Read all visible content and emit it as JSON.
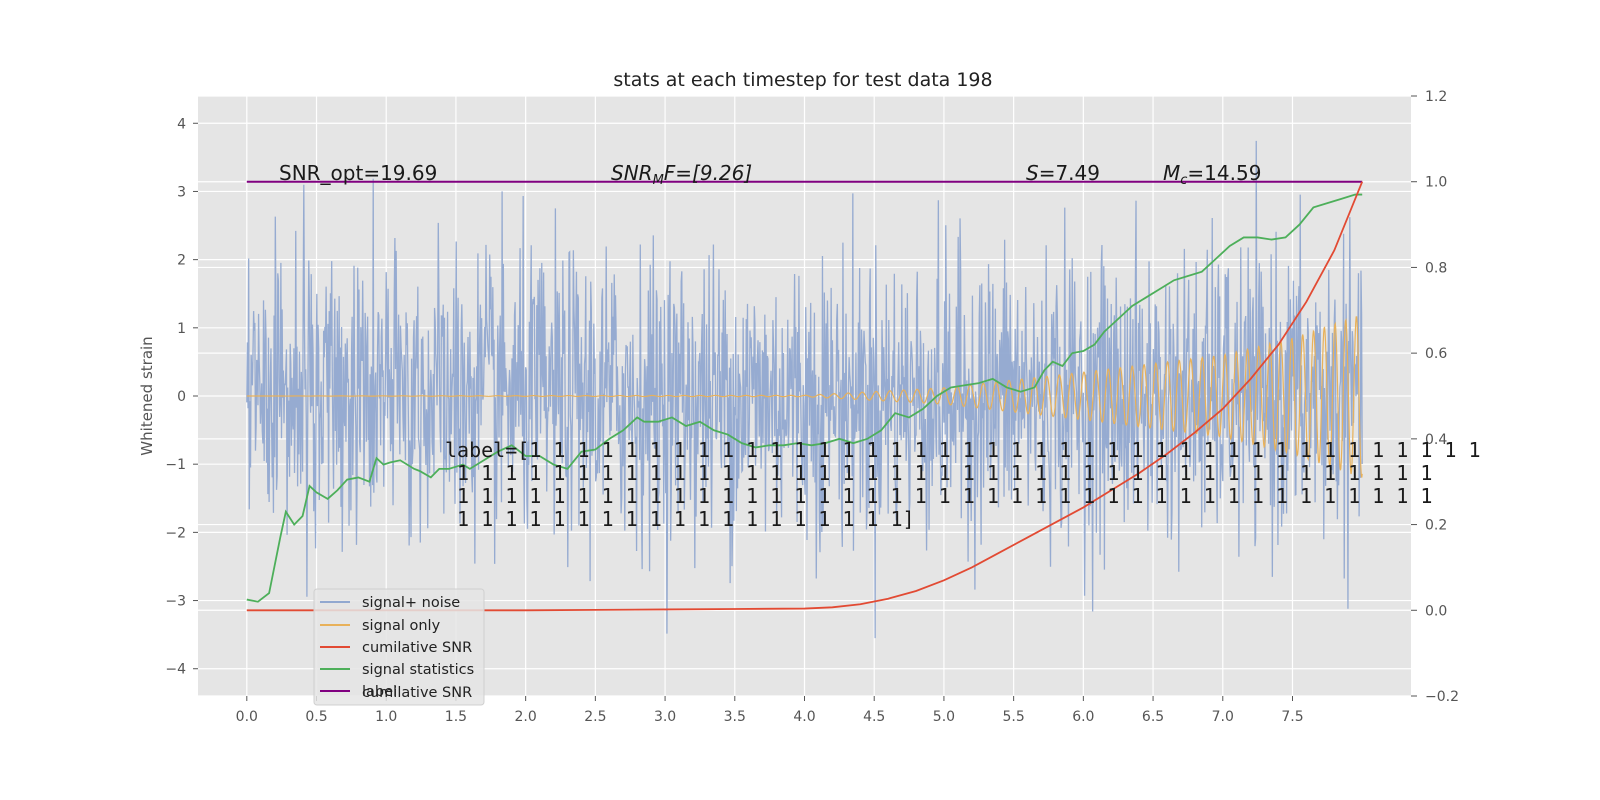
{
  "chart_data": {
    "type": "line",
    "title": "stats at each timestep for test data 198",
    "ylabel": "Whitened strain",
    "xlim": [
      -0.35,
      8.35
    ],
    "ylim_left": [
      -4.4,
      4.4
    ],
    "ylim_right": [
      -0.2,
      1.2
    ],
    "x_ticks": [
      "0.0",
      "0.5",
      "1.0",
      "1.5",
      "2.0",
      "2.5",
      "3.0",
      "3.5",
      "4.0",
      "4.5",
      "5.0",
      "5.5",
      "6.0",
      "6.5",
      "7.0",
      "7.5"
    ],
    "y_left_ticks": [
      "4",
      "3",
      "2",
      "1",
      "0",
      "−1",
      "−2",
      "−3",
      "−4"
    ],
    "y_right_ticks": [
      "1.2",
      "1.0",
      "0.8",
      "0.6",
      "0.4",
      "0.2",
      "0.0",
      "−0.2"
    ],
    "grid": true,
    "legend_placement": "lower-left",
    "colors": {
      "noise": "#91a8d0",
      "signal": "#e8b15a",
      "cum_snr": "#e24a33",
      "stats": "#4daf5a",
      "label": "#800080"
    },
    "series": [
      {
        "name": "signal+ noise",
        "axis": "left",
        "x_range": [
          0.0,
          8.0
        ],
        "envelope": "random noise, approx. ±1.4 typical, extremes ±4.0"
      },
      {
        "name": "signal only",
        "axis": "left",
        "x_range": [
          0.0,
          8.0
        ],
        "amplitude": {
          "x": [
            0.0,
            4.0,
            5.0,
            6.0,
            7.0,
            7.5,
            8.0
          ],
          "y": [
            0.0,
            0.01,
            0.12,
            0.35,
            0.6,
            0.85,
            1.2
          ]
        }
      },
      {
        "name": "cumilative SNR",
        "axis": "right",
        "x": [
          0.0,
          0.5,
          1.0,
          1.5,
          2.0,
          2.5,
          3.0,
          3.5,
          4.0,
          4.2,
          4.4,
          4.6,
          4.8,
          5.0,
          5.2,
          5.4,
          5.6,
          5.8,
          6.0,
          6.2,
          6.4,
          6.6,
          6.8,
          7.0,
          7.2,
          7.4,
          7.6,
          7.8,
          8.0
        ],
        "y": [
          0.0,
          0.0,
          0.0,
          0.0,
          0.0,
          0.001,
          0.002,
          0.003,
          0.004,
          0.007,
          0.014,
          0.027,
          0.045,
          0.07,
          0.1,
          0.135,
          0.17,
          0.205,
          0.24,
          0.28,
          0.32,
          0.365,
          0.415,
          0.47,
          0.54,
          0.62,
          0.72,
          0.84,
          1.0
        ]
      },
      {
        "name": "signal statistics",
        "axis": "right",
        "x": [
          0.0,
          0.08,
          0.16,
          0.24,
          0.28,
          0.34,
          0.4,
          0.45,
          0.5,
          0.58,
          0.65,
          0.72,
          0.8,
          0.88,
          0.93,
          0.98,
          1.03,
          1.1,
          1.2,
          1.24,
          1.32,
          1.38,
          1.45,
          1.55,
          1.6,
          1.7,
          1.8,
          1.9,
          2.0,
          2.1,
          2.2,
          2.3,
          2.4,
          2.5,
          2.6,
          2.7,
          2.8,
          2.85,
          2.95,
          3.05,
          3.15,
          3.25,
          3.35,
          3.45,
          3.55,
          3.65,
          3.75,
          3.85,
          3.95,
          4.05,
          4.15,
          4.25,
          4.35,
          4.45,
          4.55,
          4.65,
          4.75,
          4.85,
          4.95,
          5.05,
          5.15,
          5.25,
          5.35,
          5.45,
          5.55,
          5.65,
          5.72,
          5.78,
          5.85,
          5.92,
          6.0,
          6.08,
          6.15,
          6.25,
          6.35,
          6.45,
          6.55,
          6.65,
          6.75,
          6.85,
          6.95,
          7.05,
          7.15,
          7.25,
          7.35,
          7.45,
          7.55,
          7.65,
          7.75,
          7.85,
          7.95,
          8.0
        ],
        "y": [
          0.025,
          0.02,
          0.04,
          0.17,
          0.23,
          0.2,
          0.22,
          0.29,
          0.275,
          0.26,
          0.28,
          0.305,
          0.31,
          0.3,
          0.355,
          0.34,
          0.345,
          0.35,
          0.33,
          0.325,
          0.31,
          0.33,
          0.33,
          0.34,
          0.33,
          0.35,
          0.37,
          0.385,
          0.36,
          0.36,
          0.34,
          0.33,
          0.37,
          0.375,
          0.4,
          0.42,
          0.45,
          0.44,
          0.44,
          0.45,
          0.43,
          0.44,
          0.42,
          0.41,
          0.39,
          0.38,
          0.385,
          0.385,
          0.39,
          0.385,
          0.39,
          0.4,
          0.39,
          0.4,
          0.42,
          0.46,
          0.45,
          0.47,
          0.5,
          0.52,
          0.525,
          0.53,
          0.54,
          0.52,
          0.51,
          0.52,
          0.56,
          0.58,
          0.57,
          0.6,
          0.605,
          0.62,
          0.65,
          0.68,
          0.71,
          0.73,
          0.75,
          0.77,
          0.78,
          0.79,
          0.82,
          0.85,
          0.87,
          0.87,
          0.865,
          0.87,
          0.9,
          0.94,
          0.95,
          0.96,
          0.97,
          0.97
        ]
      },
      {
        "name": "label",
        "axis": "right",
        "x": [
          0.0,
          8.0
        ],
        "y": [
          1.0,
          1.0
        ]
      }
    ],
    "annotations": {
      "snr_opt": "SNR_opt=19.69",
      "snr_mf": "SNR",
      "snr_mf_sub": "M",
      "snr_mf_rest": "F=[9.26]",
      "s_value": "S",
      "s_rest": "=7.49",
      "mc_value": "M",
      "mc_sub": "c",
      "mc_rest": "=14.59",
      "label_lines": [
        "label=[1 1 1 1 1 1 1 1 1 1 1 1 1 1 1 1 1 1 1 1 1 1 1 1 1 1 1 1 1 1 1 1 1 1 1 1 1 1 1 1",
        " 1 1 1 1 1 1 1 1 1 1 1 1 1 1 1 1 1 1 1 1 1 1 1 1 1 1 1 1 1 1 1 1 1 1 1 1 1 1 1 1 1",
        " 1 1 1 1 1 1 1 1 1 1 1 1 1 1 1 1 1 1 1 1 1 1 1 1 1 1 1 1 1 1 1 1 1 1 1 1 1 1 1 1 1",
        " 1 1 1 1 1 1 1 1 1 1 1 1 1 1 1 1 1 1 1]"
      ]
    },
    "legend": {
      "entries": [
        "signal+ noise",
        "signal only",
        "cumilative SNR",
        "signal statistics",
        "label"
      ],
      "ghost_text": "cumilative SNR"
    }
  }
}
